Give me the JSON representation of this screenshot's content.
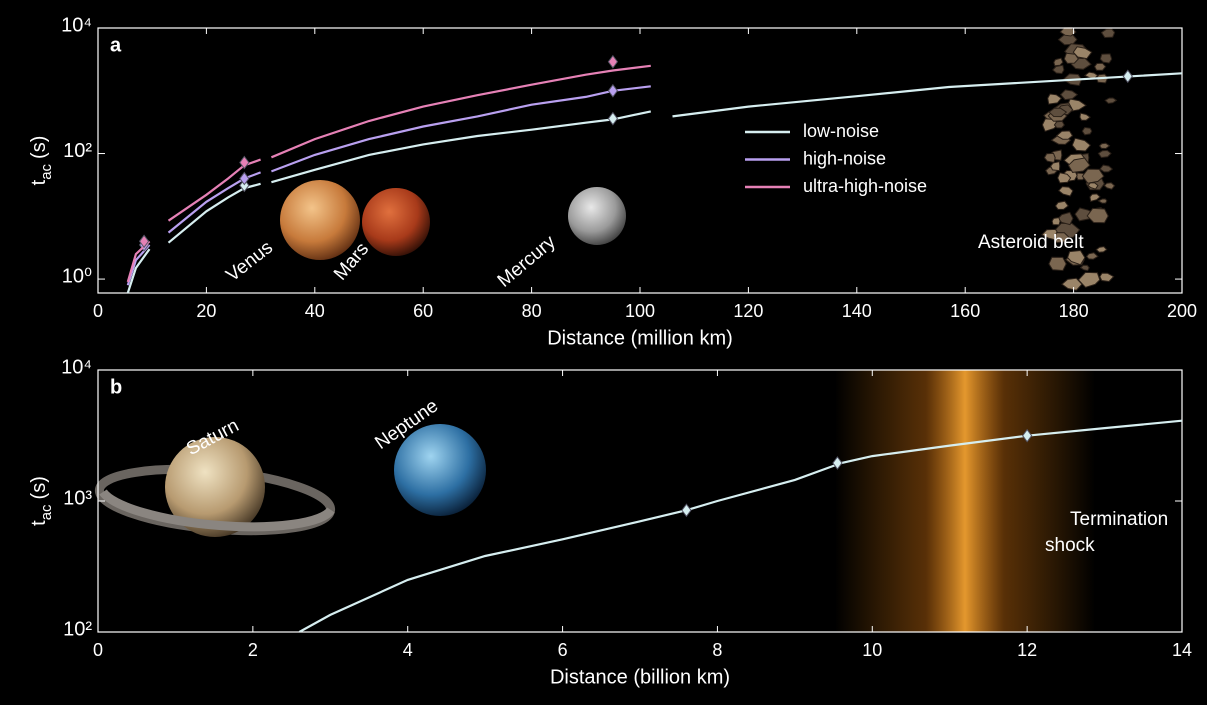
{
  "chart_data": [
    {
      "type": "line",
      "panel_label": "a",
      "x_label": "Distance (million km)",
      "y_label": {
        "main": "t",
        "sub": "ac",
        "unit": "(s)"
      },
      "log_y": true,
      "xlim": [
        0,
        200
      ],
      "ylim": [
        0.6,
        10000
      ],
      "xticks": [
        0,
        20,
        40,
        60,
        80,
        100,
        120,
        140,
        160,
        180,
        200
      ],
      "yticks": [
        {
          "value": 1,
          "label": "10⁰"
        },
        {
          "value": 100,
          "label": "10²"
        },
        {
          "value": 10000,
          "label": "10⁴"
        }
      ],
      "x": [
        5.5,
        7,
        9.5,
        11,
        13,
        20,
        24,
        27,
        30,
        31,
        32,
        40,
        50,
        60,
        70,
        80,
        90,
        95,
        102,
        104,
        106,
        120,
        140,
        157,
        180,
        200
      ],
      "series": [
        {
          "name": "low-noise",
          "color": "#d6eef0",
          "values": [
            0.6,
            1.5,
            3,
            null,
            3.8,
            12,
            20,
            28,
            33,
            null,
            35,
            55,
            95,
            140,
            190,
            240,
            310,
            350,
            470,
            null,
            390,
            560,
            820,
            1150,
            1500,
            1900
          ],
          "markers": {
            "x": [
              27,
              95,
              190
            ],
            "values": [
              31,
              360,
              1700
            ]
          }
        },
        {
          "name": "high-noise",
          "color": "#b9a0f0",
          "values": [
            0.8,
            2,
            3.5,
            null,
            5.5,
            17,
            28,
            40,
            50,
            null,
            52,
            95,
            170,
            270,
            390,
            600,
            800,
            1000,
            1180,
            null,
            null,
            null,
            null,
            null,
            null,
            null
          ],
          "markers": {
            "x": [
              8.5,
              27,
              95
            ],
            "values": [
              3.5,
              40,
              1000
            ]
          }
        },
        {
          "name": "ultra-high-noise",
          "color": "#e681b6",
          "values": [
            0.9,
            2.5,
            4,
            null,
            8.5,
            22,
            40,
            65,
            80,
            null,
            87,
            170,
            330,
            560,
            850,
            1250,
            1800,
            2100,
            2500,
            null,
            null,
            null,
            null,
            null,
            null,
            null
          ],
          "markers": {
            "x": [
              8.5,
              27,
              95
            ],
            "values": [
              4,
              72,
              2900
            ]
          }
        }
      ],
      "annotations": [
        "Venus",
        "Mars",
        "Mercury",
        "Asteroid belt"
      ]
    },
    {
      "type": "line",
      "panel_label": "b",
      "x_label": "Distance (billion km)",
      "y_label": {
        "main": "t",
        "sub": "ac",
        "unit": "(s)"
      },
      "log_y": true,
      "xlim": [
        0,
        14
      ],
      "ylim": [
        100,
        10000
      ],
      "xticks": [
        0,
        2,
        4,
        6,
        8,
        10,
        12,
        14
      ],
      "yticks": [
        {
          "value": 100,
          "label": "10²"
        },
        {
          "value": 1000,
          "label": "10³"
        },
        {
          "value": 10000,
          "label": "10⁴"
        }
      ],
      "x": [
        2.6,
        3,
        4,
        5,
        6,
        7,
        7.6,
        8,
        9,
        9.6,
        10,
        11,
        12,
        13,
        14
      ],
      "series": [
        {
          "color": "#d6eef0",
          "values": [
            100,
            135,
            250,
            380,
            510,
            700,
            850,
            1000,
            1450,
            1950,
            2200,
            2650,
            3150,
            3600,
            4100
          ],
          "markers": {
            "x": [
              7.6,
              9.55,
              12
            ],
            "values": [
              850,
              1950,
              3150
            ]
          }
        }
      ],
      "annotations": [
        "Saturn",
        "Neptune",
        "Termination",
        "shock"
      ]
    }
  ]
}
